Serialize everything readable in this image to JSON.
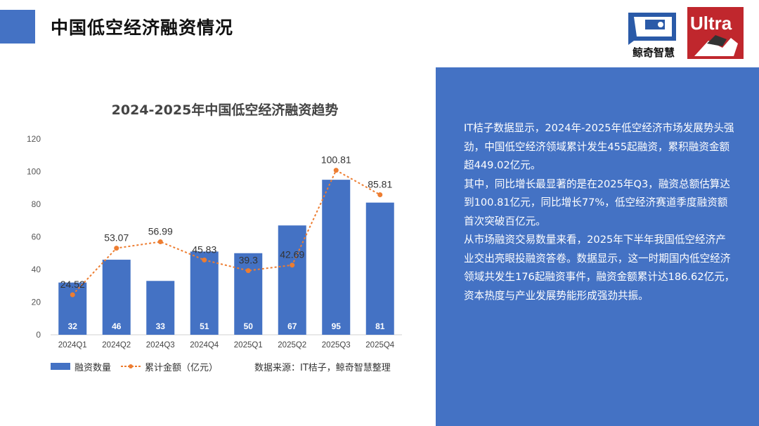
{
  "header": {
    "title": "中国低空经济融资情况",
    "logo_name": "鲸奇智慧",
    "ultra_text": "Ultra"
  },
  "colors": {
    "accent": "#4472c4",
    "line": "#ed7d31",
    "panel": "#4472c4"
  },
  "chart_data": {
    "type": "bar",
    "title": "2024-2025年中国低空经济融资趋势",
    "categories": [
      "2024Q1",
      "2024Q2",
      "2024Q3",
      "2024Q4",
      "2025Q1",
      "2025Q2",
      "2025Q3",
      "2025Q4"
    ],
    "series": [
      {
        "name": "融资数量",
        "type": "bar",
        "values": [
          32,
          46,
          33,
          51,
          50,
          67,
          95,
          81
        ]
      },
      {
        "name": "累计金额（亿元）",
        "type": "line",
        "values": [
          24.52,
          53.07,
          56.99,
          45.83,
          39.3,
          42.69,
          100.81,
          85.81
        ]
      }
    ],
    "ylim": [
      0,
      120
    ],
    "yticks": [
      0,
      20,
      40,
      60,
      80,
      100,
      120
    ],
    "grid": false,
    "legend": "bottom-left",
    "source": "数据来源：IT桔子，鲸奇智慧整理"
  },
  "panel": {
    "paragraphs": [
      "IT桔子数据显示，2024年-2025年低空经济市场发展势头强劲，中国低空经济领域累计发生455起融资，累积融资金额超449.02亿元。",
      "其中，同比增长最显著的是在2025年Q3，融资总额估算达到100.81亿元，同比增长77%，低空经济赛道季度融资额首次突破百亿元。",
      "从市场融资交易数量来看，2025年下半年我国低空经济产业交出亮眼投融资答卷。数据显示，这一时期国内低空经济领域共发生176起融资事件，融资金额累计达186.62亿元，资本热度与产业发展势能形成强劲共振。"
    ]
  }
}
